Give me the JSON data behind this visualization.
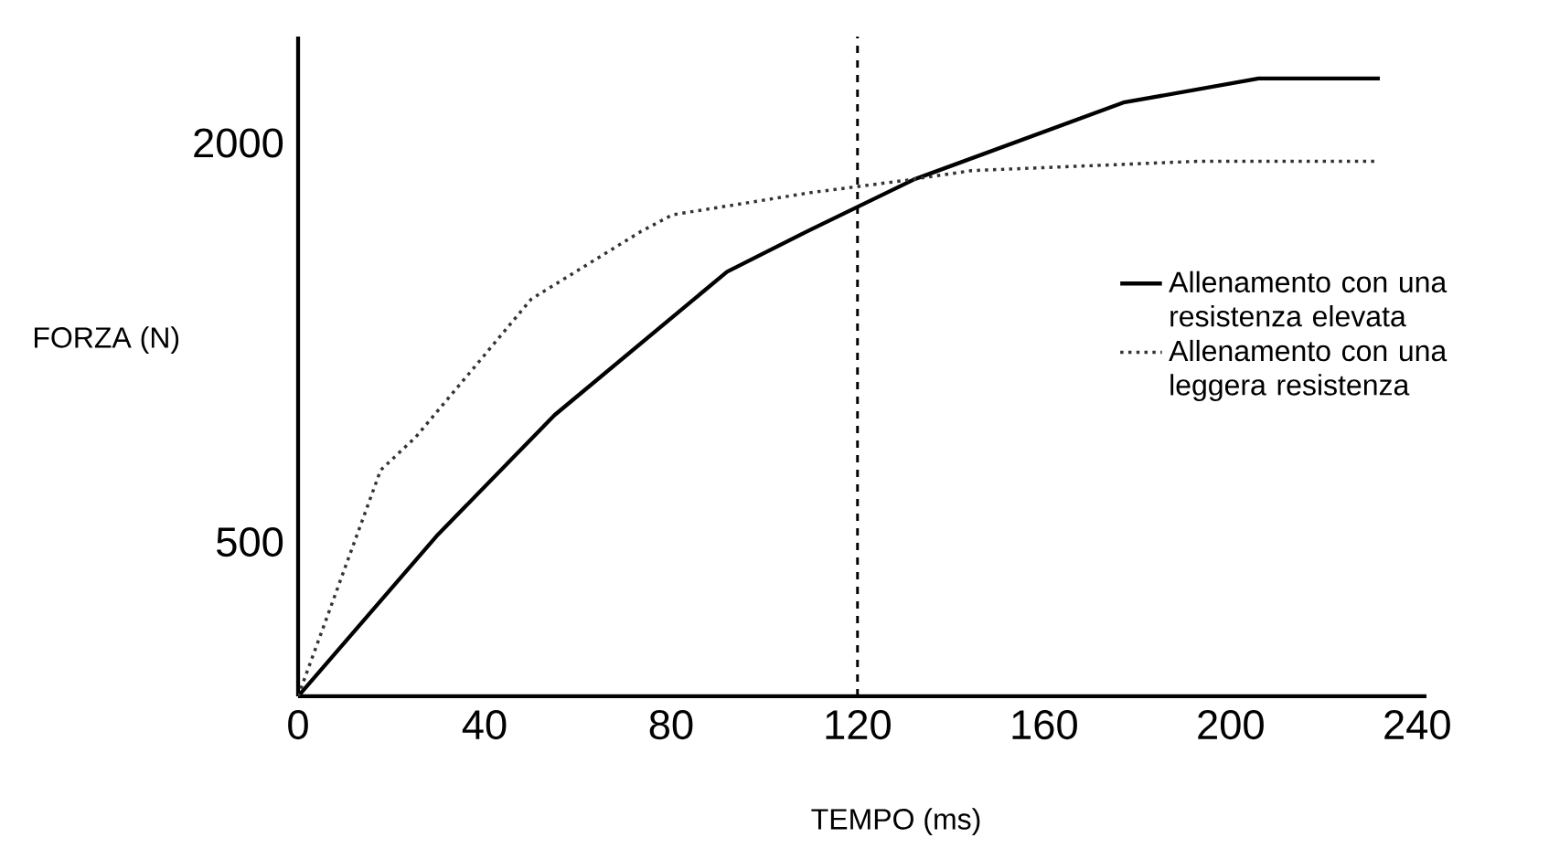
{
  "chart_data": {
    "type": "line",
    "xlabel": "TEMPO (ms)",
    "ylabel": "FORZA (N)",
    "xlim": [
      0,
      242
    ],
    "ylim": [
      -80,
      2400
    ],
    "xticks": [
      0,
      40,
      80,
      120,
      160,
      200,
      240
    ],
    "yticks": [
      500,
      2000
    ],
    "legend": "right",
    "grid": false,
    "ref_lines": [
      {
        "axis": "x",
        "value": 120,
        "line_style": "dashed",
        "color": "#000000"
      }
    ],
    "series": [
      {
        "name": "Allenamento con una resistenza elevata",
        "color": "#000000",
        "line_style": "solid",
        "x": [
          0,
          30,
          55,
          92,
          110,
          132,
          177,
          206,
          232
        ],
        "values": [
          -80,
          528,
          977,
          1516,
          1675,
          1862,
          2152,
          2242,
          2242
        ]
      },
      {
        "name": "Allenamento con una leggera resistenza",
        "color": "#333333",
        "line_style": "dotted",
        "x": [
          0,
          17.7,
          25.2,
          37.8,
          50,
          73.6,
          80.3,
          109.8,
          131.4,
          144.4,
          192.8,
          230.9
        ],
        "values": [
          -80,
          770,
          894,
          1157,
          1413,
          1668,
          1730,
          1813,
          1862,
          1896,
          1931,
          1931
        ]
      }
    ]
  }
}
